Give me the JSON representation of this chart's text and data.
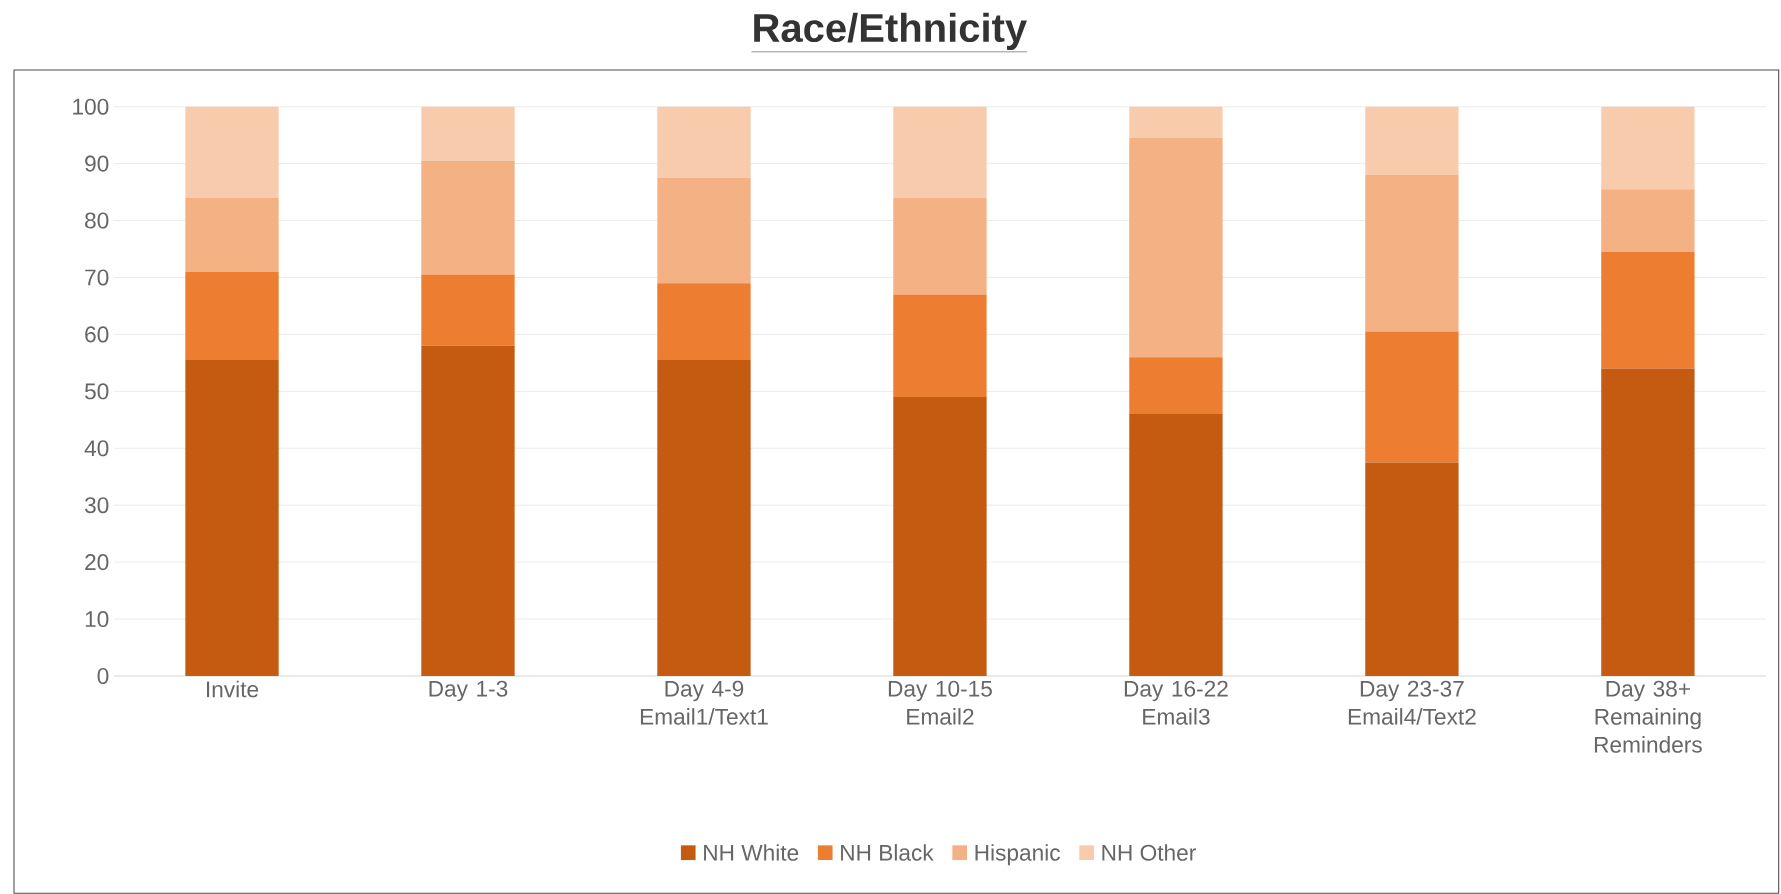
{
  "chart_data": {
    "type": "bar",
    "title": "Race/Ethnicity",
    "stacked": true,
    "categories": [
      "Invite",
      "Day 1-3",
      "Day 4-9 Email1/Text1",
      "Day 10-15 Email2",
      "Day 16-22 Email3",
      "Day 23-37 Email4/Text2",
      "Day 38+ Remaining Reminders"
    ],
    "series": [
      {
        "name": "NH White",
        "color": "#c55a11",
        "values": [
          55.5,
          58,
          55.5,
          49,
          46,
          37.5,
          54
        ]
      },
      {
        "name": "NH Black",
        "color": "#ed7d31",
        "values": [
          15.5,
          12.5,
          13.5,
          18,
          10,
          23,
          20.5
        ]
      },
      {
        "name": "Hispanic",
        "color": "#f4b183",
        "values": [
          13,
          20,
          18.5,
          17,
          38.5,
          27.5,
          11
        ]
      },
      {
        "name": "NH Other",
        "color": "#f8cbad",
        "values": [
          16,
          9.5,
          12.5,
          16,
          5.5,
          12,
          14.5
        ]
      }
    ],
    "ylim": [
      0,
      100
    ],
    "yticks": [
      0,
      10,
      20,
      30,
      40,
      50,
      60,
      70,
      80,
      90,
      100
    ],
    "grid": "y",
    "legend": "bottom"
  }
}
